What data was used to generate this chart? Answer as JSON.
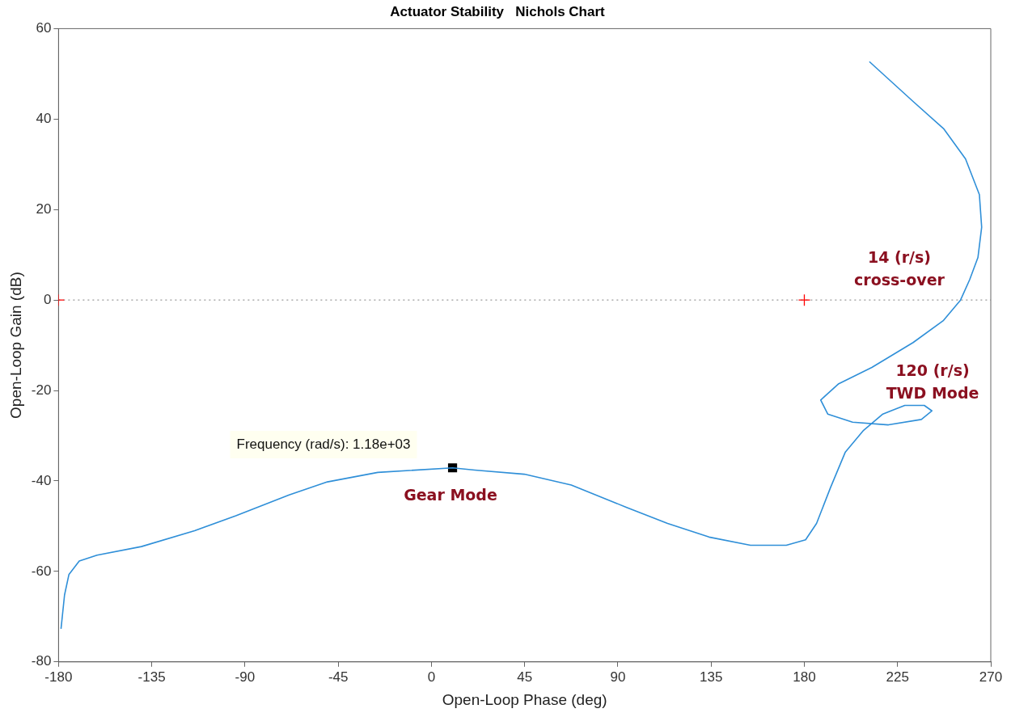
{
  "chart_data": {
    "type": "line",
    "title": "Actuator Stability   Nichols Chart",
    "xlabel": "Open-Loop Phase (deg)",
    "ylabel": "Open-Loop Gain (dB)",
    "xlim": [
      -180,
      270
    ],
    "xticks": [
      -180,
      -135,
      -90,
      -45,
      0,
      45,
      90,
      135,
      180,
      225,
      270
    ],
    "ylim": [
      -80,
      60
    ],
    "yticks": [
      -80,
      -60,
      -40,
      -20,
      0,
      20,
      40,
      60
    ],
    "grid": false,
    "legend": false,
    "series": [
      {
        "type": "line",
        "color": "#2f8fd8",
        "marker": "none",
        "x": [
          211.4,
          232.5,
          247.2,
          257.8,
          264.5,
          265.6,
          263.8,
          259.8,
          255.4,
          247.2,
          232.5,
          212.6,
          196.6,
          187.9,
          191.3,
          203.3,
          220.6,
          236.5,
          241.6,
          237.9,
          228.5,
          217.9,
          208.6,
          199.8,
          192.6,
          185.9,
          180.6,
          171.3,
          154,
          134,
          114,
          94,
          67.5,
          44.8,
          20.9,
          10.2,
          -25.9,
          -50.2,
          -68.7,
          -94.4,
          -114.3,
          -140,
          -161.4,
          -170,
          -175,
          -177.1,
          -178.8
        ],
        "values": [
          52.7,
          43.9,
          37.9,
          31.2,
          23.3,
          16.1,
          9.4,
          4.5,
          0,
          -4.5,
          -9.4,
          -14.9,
          -18.5,
          -22.1,
          -25.2,
          -27,
          -27.6,
          -26.4,
          -24.5,
          -23.3,
          -23.3,
          -25.2,
          -28.8,
          -33.6,
          -41.5,
          -49.4,
          -53,
          -54.2,
          -54.2,
          -52.4,
          -49.4,
          -45.8,
          -40.9,
          -38.5,
          -37.6,
          -37.1,
          -38.1,
          -40.2,
          -43.1,
          -47.7,
          -51,
          -54.5,
          -56.4,
          -57.7,
          -60.7,
          -65.2,
          -72.7
        ]
      },
      {
        "type": "scatter",
        "color": "#ff0000",
        "marker": "cross",
        "x": [
          -180,
          180
        ],
        "values": [
          0,
          0
        ]
      },
      {
        "type": "scatter",
        "color": "#000000",
        "marker": "square",
        "x": [
          10.2
        ],
        "values": [
          -37.1
        ]
      }
    ],
    "ref_lines": [
      {
        "axis": "y",
        "value": 0,
        "color": "#999999",
        "line_style": "dotted"
      }
    ],
    "annotations": [
      "14 (r/s)\ncross-over",
      "120 (r/s)\nTWD Mode",
      "Gear Mode",
      "Frequency (rad/s): 1.18e+03"
    ]
  }
}
